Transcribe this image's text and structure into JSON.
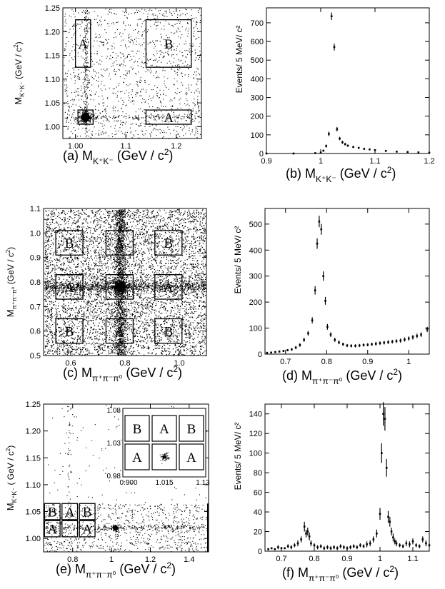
{
  "chart_data": [
    {
      "id": "a",
      "type": "scatter",
      "caption": {
        "tag": "(a)",
        "main": "M",
        "sub": "K⁺K⁻",
        "unit": "(GeV / c",
        "sup": "2",
        "close": ")"
      },
      "ylabel": {
        "main": "M",
        "sub": "K⁺K⁻",
        "unit": " (GeV / c",
        "sup": "2",
        "close": ")"
      },
      "xlim": [
        0.975,
        1.25
      ],
      "ylim": [
        0.975,
        1.25
      ],
      "xticks": [
        {
          "v": 1.0,
          "label": "1.00"
        },
        {
          "v": 1.1,
          "label": "1.1"
        },
        {
          "v": 1.2,
          "label": "1.2"
        }
      ],
      "yticks": [
        {
          "v": 1.0,
          "label": "1.00"
        },
        {
          "v": 1.05,
          "label": "1.05"
        },
        {
          "v": 1.1,
          "label": "1.10"
        },
        {
          "v": 1.15,
          "label": "1.15"
        },
        {
          "v": 1.2,
          "label": "1.20"
        },
        {
          "v": 1.25,
          "label": "1.25"
        }
      ],
      "boxes": [
        {
          "label": "A",
          "x": [
            1.0,
            1.03
          ],
          "y": [
            1.125,
            1.225
          ]
        },
        {
          "label": "B",
          "x": [
            1.14,
            1.23
          ],
          "y": [
            1.125,
            1.225
          ]
        },
        {
          "label": "A",
          "x": [
            1.14,
            1.23
          ],
          "y": [
            1.005,
            1.035
          ]
        },
        {
          "label": "",
          "x": [
            1.005,
            1.035
          ],
          "y": [
            1.005,
            1.035
          ]
        }
      ],
      "signal_center": [
        1.02,
        1.02
      ]
    },
    {
      "id": "b",
      "type": "scatter",
      "caption": {
        "tag": "(b)",
        "main": "M",
        "sub": "K⁺K⁻",
        "unit": "(GeV / c",
        "sup": "2",
        "close": ")"
      },
      "ylabel": "Events/ 5 MeV/ c²",
      "xlim": [
        0.9,
        1.2
      ],
      "ylim": [
        0,
        780
      ],
      "xticks": [
        {
          "v": 0.9,
          "label": "0.9"
        },
        {
          "v": 1.0,
          "label": "1"
        },
        {
          "v": 1.1,
          "label": "1.1"
        },
        {
          "v": 1.2,
          "label": "1.2"
        }
      ],
      "yticks": [
        {
          "v": 0,
          "label": "0"
        },
        {
          "v": 100,
          "label": "100"
        },
        {
          "v": 200,
          "label": "200"
        },
        {
          "v": 300,
          "label": "300"
        },
        {
          "v": 400,
          "label": "400"
        },
        {
          "v": 500,
          "label": "500"
        },
        {
          "v": 600,
          "label": "600"
        },
        {
          "v": 700,
          "label": "700"
        }
      ],
      "x": [
        0.9,
        0.95,
        0.99,
        1.0,
        1.005,
        1.01,
        1.015,
        1.02,
        1.025,
        1.03,
        1.035,
        1.04,
        1.045,
        1.05,
        1.06,
        1.07,
        1.08,
        1.09,
        1.1,
        1.12,
        1.14,
        1.16,
        1.18,
        1.2
      ],
      "y": [
        0,
        0,
        2,
        5,
        15,
        40,
        105,
        735,
        570,
        130,
        80,
        60,
        50,
        42,
        35,
        30,
        25,
        22,
        18,
        14,
        10,
        8,
        6,
        4
      ],
      "err": [
        0,
        0,
        2,
        3,
        5,
        8,
        12,
        20,
        18,
        12,
        9,
        8,
        7,
        6,
        5,
        5,
        5,
        4,
        4,
        3,
        3,
        3,
        2,
        2
      ]
    },
    {
      "id": "c",
      "type": "scatter",
      "caption": {
        "tag": "(c)",
        "main": "M",
        "sub": "π⁺π⁻π⁰",
        "unit": "(GeV / c",
        "sup": "2",
        "close": ")"
      },
      "ylabel": {
        "main": "M",
        "sub": "π⁺π⁻π⁰",
        "unit": " (GeV / c",
        "sup": "2",
        "close": ")"
      },
      "xlim": [
        0.5,
        1.1
      ],
      "ylim": [
        0.5,
        1.1
      ],
      "xticks": [
        {
          "v": 0.6,
          "label": "0.6"
        },
        {
          "v": 0.8,
          "label": "0.8"
        },
        {
          "v": 1.0,
          "label": "1.0"
        }
      ],
      "yticks": [
        {
          "v": 0.5,
          "label": "0.5"
        },
        {
          "v": 0.6,
          "label": "0.6"
        },
        {
          "v": 0.7,
          "label": "0.7"
        },
        {
          "v": 0.8,
          "label": "0.8"
        },
        {
          "v": 0.9,
          "label": "0.9"
        },
        {
          "v": 1.0,
          "label": "1.0"
        },
        {
          "v": 1.1,
          "label": "1.1"
        }
      ],
      "boxes": [
        {
          "label": "B",
          "x": [
            0.545,
            0.645
          ],
          "y": [
            0.91,
            1.01
          ]
        },
        {
          "label": "A",
          "x": [
            0.73,
            0.83
          ],
          "y": [
            0.91,
            1.01
          ]
        },
        {
          "label": "B",
          "x": [
            0.91,
            1.01
          ],
          "y": [
            0.91,
            1.01
          ]
        },
        {
          "label": "A",
          "x": [
            0.545,
            0.645
          ],
          "y": [
            0.73,
            0.83
          ]
        },
        {
          "label": "",
          "x": [
            0.73,
            0.83
          ],
          "y": [
            0.73,
            0.83
          ]
        },
        {
          "label": "A",
          "x": [
            0.91,
            1.01
          ],
          "y": [
            0.73,
            0.83
          ]
        },
        {
          "label": "B",
          "x": [
            0.545,
            0.645
          ],
          "y": [
            0.55,
            0.65
          ]
        },
        {
          "label": "A",
          "x": [
            0.73,
            0.83
          ],
          "y": [
            0.55,
            0.65
          ]
        },
        {
          "label": "B",
          "x": [
            0.91,
            1.01
          ],
          "y": [
            0.55,
            0.65
          ]
        }
      ],
      "signal_center": [
        0.782,
        0.782
      ]
    },
    {
      "id": "d",
      "type": "scatter",
      "caption": {
        "tag": "(d)",
        "main": "M",
        "sub": "π⁺π⁻π⁰",
        "unit": "(GeV / c",
        "sup": "2",
        "close": ")"
      },
      "ylabel": "Events/ 5 MeV/ c²",
      "xlim": [
        0.65,
        1.05
      ],
      "ylim": [
        0,
        560
      ],
      "xticks": [
        {
          "v": 0.7,
          "label": "0.7"
        },
        {
          "v": 0.8,
          "label": "0.8"
        },
        {
          "v": 0.9,
          "label": "0.9"
        },
        {
          "v": 1.0,
          "label": "1"
        }
      ],
      "yticks": [
        {
          "v": 0,
          "label": "0"
        },
        {
          "v": 100,
          "label": "100"
        },
        {
          "v": 200,
          "label": "200"
        },
        {
          "v": 300,
          "label": "300"
        },
        {
          "v": 400,
          "label": "400"
        },
        {
          "v": 500,
          "label": "500"
        }
      ],
      "x": [
        0.655,
        0.665,
        0.675,
        0.685,
        0.695,
        0.705,
        0.715,
        0.725,
        0.735,
        0.745,
        0.755,
        0.765,
        0.772,
        0.777,
        0.782,
        0.787,
        0.792,
        0.797,
        0.802,
        0.81,
        0.82,
        0.83,
        0.84,
        0.85,
        0.86,
        0.87,
        0.88,
        0.89,
        0.9,
        0.91,
        0.92,
        0.93,
        0.94,
        0.95,
        0.96,
        0.97,
        0.98,
        0.99,
        1.0,
        1.01,
        1.02,
        1.03,
        1.045
      ],
      "y": [
        5,
        6,
        8,
        10,
        12,
        15,
        18,
        25,
        35,
        55,
        80,
        130,
        245,
        425,
        510,
        480,
        300,
        205,
        105,
        75,
        55,
        45,
        38,
        33,
        32,
        32,
        33,
        35,
        36,
        38,
        40,
        42,
        44,
        46,
        48,
        50,
        52,
        56,
        60,
        65,
        70,
        75,
        95
      ],
      "err": [
        3,
        3,
        3,
        4,
        4,
        4,
        5,
        6,
        7,
        8,
        9,
        12,
        16,
        20,
        22,
        21,
        18,
        15,
        11,
        9,
        8,
        7,
        6,
        6,
        6,
        6,
        6,
        6,
        6,
        6,
        7,
        7,
        7,
        7,
        7,
        7,
        8,
        8,
        8,
        9,
        9,
        9,
        10
      ]
    },
    {
      "id": "e",
      "type": "scatter",
      "caption": {
        "tag": "(e)",
        "main": "M",
        "sub": "π⁺π⁻π⁰",
        "unit": "(GeV / c",
        "sup": "2",
        "close": ")"
      },
      "ylabel": {
        "main": "M",
        "sub": "K⁺K⁻",
        "unit": " ( GeV / c",
        "sup": "2",
        "close": ")"
      },
      "xlim": [
        0.65,
        1.5
      ],
      "ylim": [
        0.975,
        1.25
      ],
      "xticks": [
        {
          "v": 0.8,
          "label": "0.8"
        },
        {
          "v": 1.0,
          "label": "1"
        },
        {
          "v": 1.2,
          "label": "1.2"
        },
        {
          "v": 1.4,
          "label": "1.4"
        }
      ],
      "yticks": [
        {
          "v": 1.0,
          "label": "1.00"
        },
        {
          "v": 1.05,
          "label": "1.05"
        },
        {
          "v": 1.1,
          "label": "1.10"
        },
        {
          "v": 1.15,
          "label": "1.15"
        },
        {
          "v": 1.2,
          "label": "1.20"
        },
        {
          "v": 1.25,
          "label": "1.25"
        }
      ],
      "boxes": [
        {
          "label": "B",
          "x": [
            0.655,
            0.735
          ],
          "y": [
            1.035,
            1.065
          ]
        },
        {
          "label": "A",
          "x": [
            0.745,
            0.825
          ],
          "y": [
            1.035,
            1.065
          ]
        },
        {
          "label": "B",
          "x": [
            0.835,
            0.915
          ],
          "y": [
            1.035,
            1.065
          ]
        },
        {
          "label": "A",
          "x": [
            0.655,
            0.735
          ],
          "y": [
            1.003,
            1.033
          ]
        },
        {
          "label": "",
          "x": [
            0.745,
            0.825
          ],
          "y": [
            1.003,
            1.033
          ]
        },
        {
          "label": "A",
          "x": [
            0.835,
            0.915
          ],
          "y": [
            1.003,
            1.033
          ]
        }
      ],
      "signal_center": [
        1.02,
        1.02
      ],
      "inset": {
        "xticks": [
          {
            "v": 0.9,
            "label": "0.900"
          },
          {
            "v": 1.015,
            "label": "1.015"
          },
          {
            "v": 1.13,
            "label": "1.13"
          }
        ],
        "yticks": [
          {
            "v": 0.98,
            "label": "0.98"
          },
          {
            "v": 1.03,
            "label": "1.03"
          },
          {
            "v": 1.08,
            "label": "1.08"
          }
        ],
        "xlim": [
          0.9,
          1.13
        ],
        "ylim": [
          0.98,
          1.08
        ],
        "boxes": [
          "B",
          "A",
          "B",
          "A",
          "",
          "A"
        ]
      }
    },
    {
      "id": "f",
      "type": "scatter",
      "caption": {
        "tag": "(f)",
        "main": "M",
        "sub": "π⁺π⁻π⁰",
        "unit": "(GeV / c",
        "sup": "2",
        "close": ")"
      },
      "ylabel": "Events/ 5 MeV/ c²",
      "xlim": [
        0.65,
        1.15
      ],
      "ylim": [
        0,
        150
      ],
      "xticks": [
        {
          "v": 0.7,
          "label": "0.7"
        },
        {
          "v": 0.8,
          "label": "0.8"
        },
        {
          "v": 0.9,
          "label": "0.9"
        },
        {
          "v": 1.0,
          "label": "1"
        },
        {
          "v": 1.1,
          "label": "1.1"
        }
      ],
      "yticks": [
        {
          "v": 0,
          "label": "0"
        },
        {
          "v": 20,
          "label": "20"
        },
        {
          "v": 40,
          "label": "40"
        },
        {
          "v": 60,
          "label": "60"
        },
        {
          "v": 80,
          "label": "80"
        },
        {
          "v": 100,
          "label": "100"
        },
        {
          "v": 120,
          "label": "120"
        },
        {
          "v": 140,
          "label": "140"
        }
      ],
      "x": [
        0.66,
        0.67,
        0.68,
        0.69,
        0.7,
        0.71,
        0.72,
        0.73,
        0.74,
        0.75,
        0.76,
        0.77,
        0.775,
        0.78,
        0.785,
        0.79,
        0.8,
        0.81,
        0.82,
        0.83,
        0.84,
        0.85,
        0.86,
        0.87,
        0.88,
        0.89,
        0.9,
        0.91,
        0.92,
        0.93,
        0.94,
        0.95,
        0.96,
        0.97,
        0.98,
        0.99,
        1.0,
        1.005,
        1.01,
        1.015,
        1.02,
        1.025,
        1.03,
        1.035,
        1.04,
        1.045,
        1.05,
        1.06,
        1.07,
        1.08,
        1.09,
        1.1,
        1.11,
        1.12,
        1.13,
        1.14,
        1.15
      ],
      "y": [
        2,
        3,
        2,
        4,
        3,
        3,
        5,
        4,
        6,
        8,
        12,
        25,
        18,
        20,
        15,
        8,
        6,
        4,
        5,
        3,
        4,
        3,
        4,
        3,
        5,
        4,
        3,
        4,
        5,
        4,
        6,
        5,
        7,
        8,
        12,
        18,
        38,
        100,
        140,
        135,
        85,
        35,
        30,
        20,
        14,
        10,
        8,
        6,
        5,
        8,
        7,
        10,
        6,
        5,
        12,
        8,
        6
      ],
      "err": [
        1,
        1,
        1,
        2,
        1,
        1,
        2,
        2,
        2,
        3,
        3,
        5,
        4,
        4,
        4,
        3,
        2,
        2,
        2,
        2,
        2,
        2,
        2,
        2,
        2,
        2,
        2,
        2,
        2,
        2,
        2,
        2,
        3,
        3,
        3,
        4,
        6,
        10,
        12,
        12,
        9,
        6,
        5,
        4,
        4,
        3,
        3,
        2,
        2,
        3,
        3,
        3,
        2,
        2,
        3,
        3,
        2
      ]
    }
  ]
}
